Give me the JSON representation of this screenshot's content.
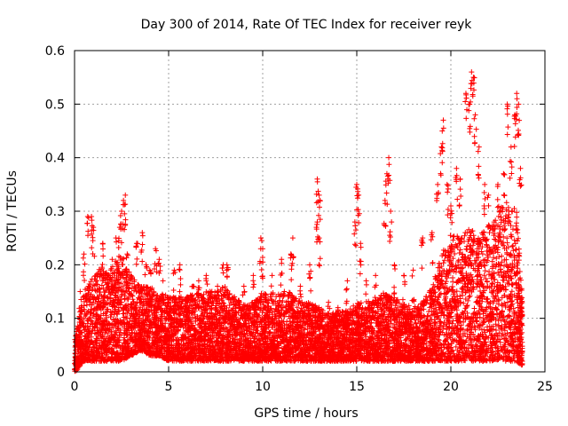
{
  "chart_data": {
    "type": "scatter",
    "title": "Day 300 of 2014, Rate Of TEC Index for receiver reyk",
    "xlabel": "GPS time / hours",
    "ylabel": "ROTI / TECUs",
    "xlim": [
      0,
      25
    ],
    "ylim": [
      0,
      0.6
    ],
    "xticks": [
      0,
      5,
      10,
      15,
      20,
      25
    ],
    "yticks": [
      0,
      0.1,
      0.2,
      0.3,
      0.4,
      0.5,
      0.6
    ],
    "xtick_labels": [
      "0",
      "5",
      "10",
      "15",
      "20",
      "25"
    ],
    "ytick_labels": [
      "0",
      "0.1",
      "0.2",
      "0.3",
      "0.4",
      "0.5",
      "0.6"
    ],
    "grid": true,
    "marker": "+",
    "color": "#ff0000",
    "points": [
      [
        0.1,
        0.02
      ],
      [
        0.3,
        0.15
      ],
      [
        0.5,
        0.22
      ],
      [
        0.7,
        0.29
      ],
      [
        0.9,
        0.29
      ],
      [
        1.0,
        0.27
      ],
      [
        1.2,
        0.14
      ],
      [
        1.5,
        0.24
      ],
      [
        1.8,
        0.18
      ],
      [
        2.0,
        0.21
      ],
      [
        2.2,
        0.25
      ],
      [
        2.4,
        0.27
      ],
      [
        2.5,
        0.3
      ],
      [
        2.6,
        0.32
      ],
      [
        2.7,
        0.33
      ],
      [
        2.8,
        0.22
      ],
      [
        3.0,
        0.18
      ],
      [
        3.3,
        0.24
      ],
      [
        3.6,
        0.26
      ],
      [
        3.8,
        0.2
      ],
      [
        4.0,
        0.19
      ],
      [
        4.3,
        0.23
      ],
      [
        4.5,
        0.21
      ],
      [
        4.7,
        0.17
      ],
      [
        5.0,
        0.13
      ],
      [
        5.3,
        0.19
      ],
      [
        5.6,
        0.2
      ],
      [
        6.0,
        0.14
      ],
      [
        6.3,
        0.16
      ],
      [
        6.6,
        0.17
      ],
      [
        7.0,
        0.18
      ],
      [
        7.3,
        0.15
      ],
      [
        7.6,
        0.16
      ],
      [
        7.9,
        0.2
      ],
      [
        8.1,
        0.2
      ],
      [
        8.5,
        0.14
      ],
      [
        9.0,
        0.16
      ],
      [
        9.5,
        0.18
      ],
      [
        9.9,
        0.25
      ],
      [
        10.0,
        0.23
      ],
      [
        10.5,
        0.18
      ],
      [
        11.0,
        0.21
      ],
      [
        11.5,
        0.22
      ],
      [
        11.6,
        0.25
      ],
      [
        12.0,
        0.16
      ],
      [
        12.5,
        0.2
      ],
      [
        12.9,
        0.36
      ],
      [
        13.0,
        0.33
      ],
      [
        12.9,
        0.28
      ],
      [
        13.0,
        0.25
      ],
      [
        13.5,
        0.13
      ],
      [
        14.0,
        0.12
      ],
      [
        14.5,
        0.17
      ],
      [
        14.9,
        0.28
      ],
      [
        15.0,
        0.35
      ],
      [
        15.1,
        0.33
      ],
      [
        15.2,
        0.24
      ],
      [
        15.5,
        0.17
      ],
      [
        16.0,
        0.18
      ],
      [
        16.5,
        0.32
      ],
      [
        16.6,
        0.37
      ],
      [
        16.7,
        0.4
      ],
      [
        16.8,
        0.3
      ],
      [
        17.0,
        0.2
      ],
      [
        17.5,
        0.18
      ],
      [
        18.0,
        0.19
      ],
      [
        18.5,
        0.25
      ],
      [
        19.0,
        0.26
      ],
      [
        19.3,
        0.35
      ],
      [
        19.5,
        0.42
      ],
      [
        19.6,
        0.47
      ],
      [
        19.8,
        0.35
      ],
      [
        20.0,
        0.31
      ],
      [
        20.3,
        0.38
      ],
      [
        20.5,
        0.36
      ],
      [
        20.8,
        0.52
      ],
      [
        21.0,
        0.5
      ],
      [
        21.1,
        0.56
      ],
      [
        21.2,
        0.55
      ],
      [
        21.3,
        0.48
      ],
      [
        21.5,
        0.42
      ],
      [
        21.8,
        0.35
      ],
      [
        22.0,
        0.33
      ],
      [
        22.3,
        0.28
      ],
      [
        22.5,
        0.35
      ],
      [
        22.8,
        0.37
      ],
      [
        23.0,
        0.5
      ],
      [
        23.2,
        0.42
      ],
      [
        23.4,
        0.48
      ],
      [
        23.5,
        0.52
      ],
      [
        23.6,
        0.5
      ],
      [
        23.7,
        0.38
      ],
      [
        23.7,
        0.12
      ]
    ],
    "bands": [
      [
        0.0,
        0.0,
        0.06
      ],
      [
        0.5,
        0.02,
        0.15
      ],
      [
        1.0,
        0.02,
        0.18
      ],
      [
        1.5,
        0.02,
        0.2
      ],
      [
        2.0,
        0.02,
        0.19
      ],
      [
        2.5,
        0.02,
        0.22
      ],
      [
        3.0,
        0.03,
        0.18
      ],
      [
        3.5,
        0.04,
        0.16
      ],
      [
        4.0,
        0.03,
        0.16
      ],
      [
        4.5,
        0.03,
        0.15
      ],
      [
        5.0,
        0.02,
        0.14
      ],
      [
        5.5,
        0.02,
        0.14
      ],
      [
        6.0,
        0.02,
        0.14
      ],
      [
        6.5,
        0.02,
        0.15
      ],
      [
        7.0,
        0.02,
        0.15
      ],
      [
        7.5,
        0.02,
        0.15
      ],
      [
        8.0,
        0.02,
        0.16
      ],
      [
        8.5,
        0.02,
        0.14
      ],
      [
        9.0,
        0.02,
        0.13
      ],
      [
        9.5,
        0.02,
        0.13
      ],
      [
        10.0,
        0.02,
        0.15
      ],
      [
        10.5,
        0.02,
        0.14
      ],
      [
        11.0,
        0.02,
        0.15
      ],
      [
        11.5,
        0.02,
        0.15
      ],
      [
        12.0,
        0.02,
        0.13
      ],
      [
        12.5,
        0.02,
        0.13
      ],
      [
        13.0,
        0.02,
        0.12
      ],
      [
        13.5,
        0.02,
        0.11
      ],
      [
        14.0,
        0.02,
        0.11
      ],
      [
        14.5,
        0.02,
        0.12
      ],
      [
        15.0,
        0.02,
        0.13
      ],
      [
        15.5,
        0.02,
        0.13
      ],
      [
        16.0,
        0.02,
        0.14
      ],
      [
        16.5,
        0.02,
        0.15
      ],
      [
        17.0,
        0.02,
        0.14
      ],
      [
        17.5,
        0.02,
        0.13
      ],
      [
        18.0,
        0.02,
        0.12
      ],
      [
        18.5,
        0.02,
        0.13
      ],
      [
        19.0,
        0.02,
        0.16
      ],
      [
        19.5,
        0.02,
        0.22
      ],
      [
        20.0,
        0.02,
        0.26
      ],
      [
        20.5,
        0.02,
        0.25
      ],
      [
        21.0,
        0.02,
        0.27
      ],
      [
        21.5,
        0.02,
        0.25
      ],
      [
        22.0,
        0.02,
        0.28
      ],
      [
        22.5,
        0.02,
        0.3
      ],
      [
        23.0,
        0.02,
        0.32
      ],
      [
        23.5,
        0.02,
        0.3
      ],
      [
        23.8,
        0.01,
        0.14
      ]
    ]
  }
}
